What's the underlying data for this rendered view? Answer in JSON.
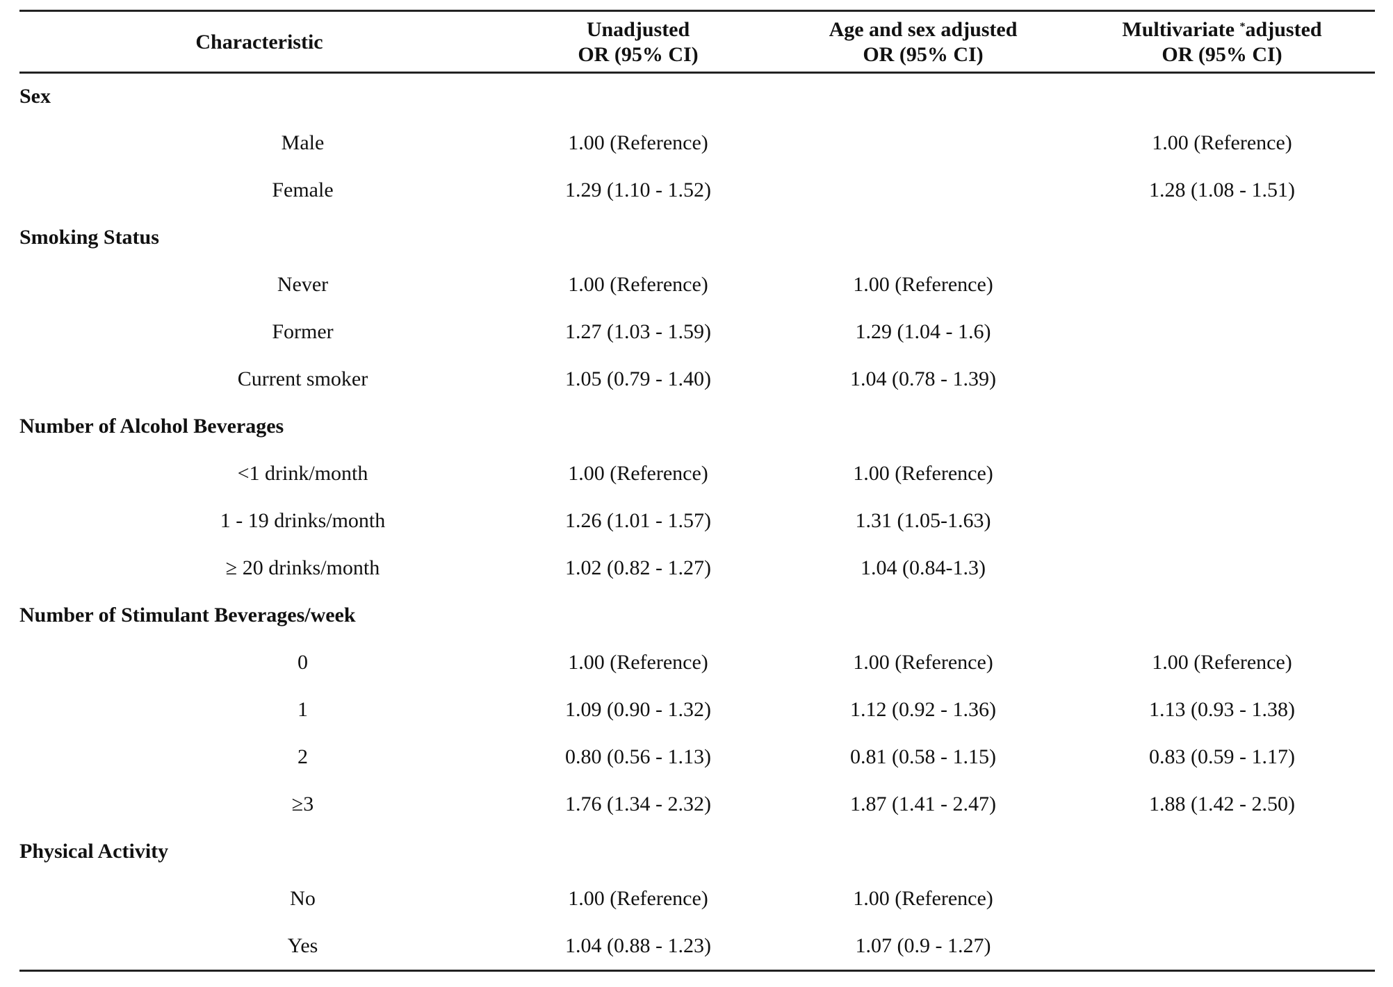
{
  "header": {
    "characteristic": "Characteristic",
    "unadjusted_line1": "Unadjusted",
    "unadjusted_line2": "OR (95% CI)",
    "agesex_line1": "Age and sex adjusted",
    "agesex_line2": "OR (95% CI)",
    "multi_line1_a": "Multivariate",
    "multi_marker": "*",
    "multi_line1_b": "adjusted",
    "multi_line2": "OR (95% CI)"
  },
  "sections": [
    {
      "title": "Sex",
      "rows": [
        {
          "label": "Male",
          "unadjusted": "1.00 (Reference)",
          "agesex": "",
          "multivariate": "1.00 (Reference)"
        },
        {
          "label": "Female",
          "unadjusted": "1.29 (1.10 - 1.52)",
          "agesex": "",
          "multivariate": "1.28 (1.08 - 1.51)"
        }
      ]
    },
    {
      "title": "Smoking Status",
      "rows": [
        {
          "label": "Never",
          "unadjusted": "1.00 (Reference)",
          "agesex": "1.00 (Reference)",
          "multivariate": ""
        },
        {
          "label": "Former",
          "unadjusted": "1.27 (1.03 - 1.59)",
          "agesex": "1.29 (1.04 - 1.6)",
          "multivariate": ""
        },
        {
          "label": "Current smoker",
          "unadjusted": "1.05 (0.79 - 1.40)",
          "agesex": "1.04 (0.78 - 1.39)",
          "multivariate": ""
        }
      ]
    },
    {
      "title": "Number of Alcohol Beverages",
      "rows": [
        {
          "label": "<1 drink/month",
          "unadjusted": "1.00 (Reference)",
          "agesex": "1.00 (Reference)",
          "multivariate": ""
        },
        {
          "label": "1 - 19 drinks/month",
          "unadjusted": "1.26 (1.01 - 1.57)",
          "agesex": "1.31 (1.05-1.63)",
          "multivariate": ""
        },
        {
          "label": "≥ 20 drinks/month",
          "unadjusted": "1.02 (0.82 - 1.27)",
          "agesex": "1.04 (0.84-1.3)",
          "multivariate": ""
        }
      ]
    },
    {
      "title": "Number of Stimulant Beverages/week",
      "rows": [
        {
          "label": "0",
          "unadjusted": "1.00 (Reference)",
          "agesex": "1.00 (Reference)",
          "multivariate": "1.00 (Reference)"
        },
        {
          "label": "1",
          "unadjusted": "1.09 (0.90 - 1.32)",
          "agesex": "1.12 (0.92 - 1.36)",
          "multivariate": "1.13 (0.93 - 1.38)"
        },
        {
          "label": "2",
          "unadjusted": "0.80 (0.56 - 1.13)",
          "agesex": "0.81 (0.58 - 1.15)",
          "multivariate": "0.83 (0.59 - 1.17)"
        },
        {
          "label": "≥3",
          "unadjusted": "1.76 (1.34 - 2.32)",
          "agesex": "1.87 (1.41 - 2.47)",
          "multivariate": "1.88 (1.42 - 2.50)"
        }
      ]
    },
    {
      "title": "Physical Activity",
      "rows": [
        {
          "label": "No",
          "unadjusted": "1.00 (Reference)",
          "agesex": "1.00 (Reference)",
          "multivariate": ""
        },
        {
          "label": "Yes",
          "unadjusted": "1.04 (0.88 - 1.23)",
          "agesex": "1.07 (0.9 - 1.27)",
          "multivariate": ""
        }
      ]
    }
  ]
}
